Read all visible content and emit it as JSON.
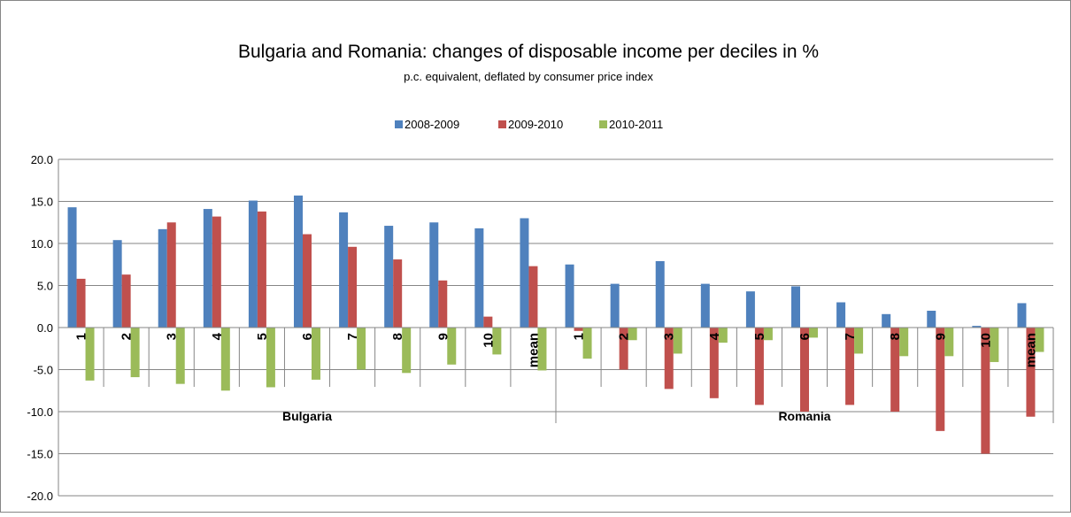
{
  "chart_data": {
    "type": "bar",
    "title": "Bulgaria and Romania: changes of disposable income per deciles in %",
    "subtitle": "p.c. equivalent, deflated by consumer price index",
    "groups": [
      {
        "name": "Bulgaria",
        "categories": [
          "1",
          "2",
          "3",
          "4",
          "5",
          "6",
          "7",
          "8",
          "9",
          "10",
          "mean"
        ]
      },
      {
        "name": "Romania",
        "categories": [
          "1",
          "2",
          "3",
          "4",
          "5",
          "6",
          "7",
          "8",
          "9",
          "10",
          "mean"
        ]
      }
    ],
    "series": [
      {
        "name": "2008-2009",
        "color": "#4f81bd",
        "values": [
          14.3,
          10.4,
          11.7,
          14.1,
          15.1,
          15.7,
          13.7,
          12.1,
          12.5,
          11.8,
          13.0,
          7.5,
          5.2,
          7.9,
          5.2,
          4.3,
          4.9,
          3.0,
          1.6,
          2.0,
          0.2,
          2.9
        ]
      },
      {
        "name": "2009-2010",
        "color": "#c0504d",
        "values": [
          5.8,
          6.3,
          12.5,
          13.2,
          13.8,
          11.1,
          9.6,
          8.1,
          5.6,
          1.3,
          7.3,
          -0.4,
          -5.0,
          -7.3,
          -8.4,
          -9.2,
          -10.0,
          -9.2,
          -10.0,
          -12.3,
          -15.0,
          -10.6
        ]
      },
      {
        "name": "2010-2011",
        "color": "#9bbb59",
        "values": [
          -6.3,
          -5.9,
          -6.7,
          -7.5,
          -7.1,
          -6.2,
          -5.0,
          -5.4,
          -4.4,
          -3.2,
          -5.1,
          -3.7,
          -1.5,
          -3.1,
          -1.8,
          -1.5,
          -1.2,
          -3.1,
          -3.4,
          -3.4,
          -4.1,
          -2.9
        ]
      }
    ],
    "yticks": [
      "20.0",
      "15.0",
      "10.0",
      "5.0",
      "0.0",
      "-5.0",
      "-10.0",
      "-15.0",
      "-20.0"
    ],
    "ylim": [
      -20,
      20
    ],
    "grid": true,
    "legend_position": "top"
  }
}
